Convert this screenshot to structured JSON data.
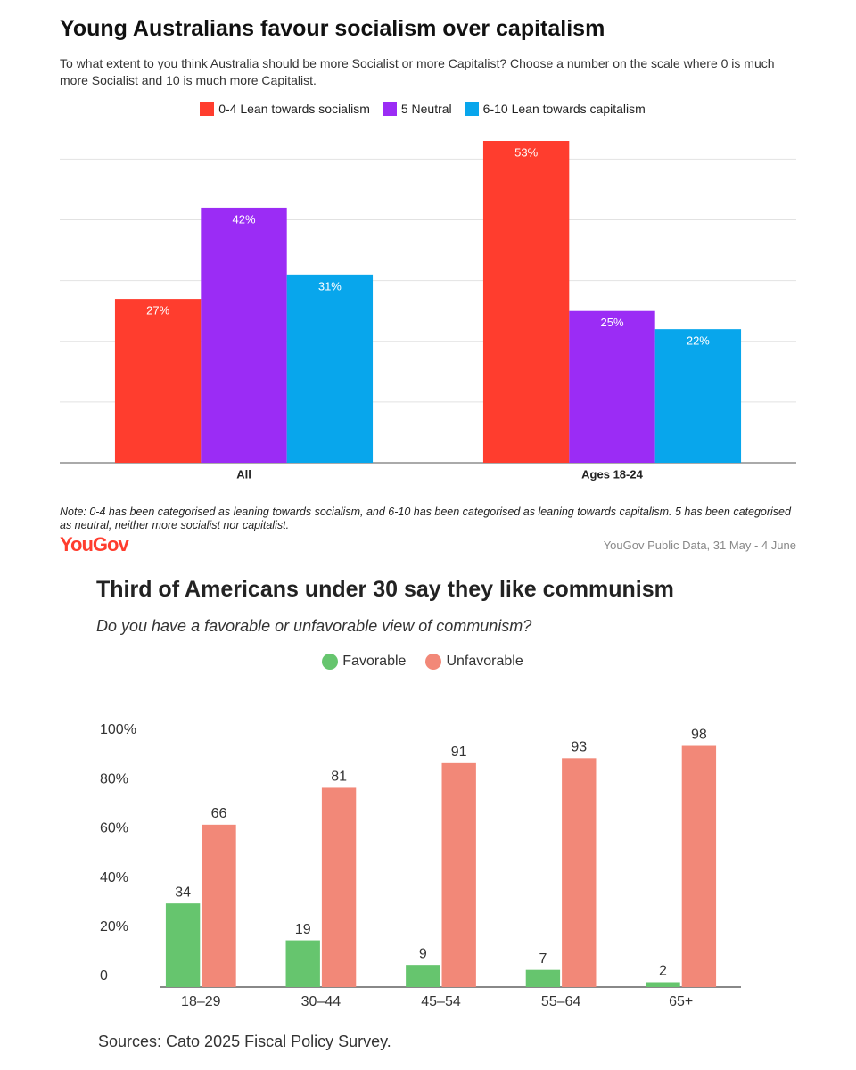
{
  "chart_data": [
    {
      "type": "bar",
      "title": "Young Australians favour socialism over capitalism",
      "subtitle": "To what extent to you think Australia should be more Socialist or more Capitalist? Choose a number on the scale where 0 is much more Socialist and 10 is much more Capitalist.",
      "categories": [
        "All",
        "Ages 18-24"
      ],
      "series": [
        {
          "name": "0-4 Lean towards socialism",
          "color": "#ff3d2e",
          "values": [
            27,
            53
          ],
          "value_labels": [
            "27%",
            "53%"
          ]
        },
        {
          "name": "5 Neutral",
          "color": "#9b2cf5",
          "values": [
            42,
            25
          ],
          "value_labels": [
            "42%",
            "25%"
          ]
        },
        {
          "name": "6-10 Lean towards capitalism",
          "color": "#08a6ec",
          "values": [
            31,
            22
          ],
          "value_labels": [
            "31%",
            "22%"
          ]
        }
      ],
      "ylim": [
        0,
        53
      ],
      "yticks": [
        0,
        10,
        20,
        30,
        40,
        50
      ],
      "show_tick_labels": false,
      "grid": true,
      "legend": "top",
      "note": "Note: 0-4 has been categorised as leaning towards socialism, and 6-10 has been categorised as leaning towards capitalism. 5 has been categorised as neutral, neither more socialist nor capitalist.",
      "logo": "YouGov",
      "source": "YouGov Public Data, 31 May - 4 June"
    },
    {
      "type": "bar",
      "title": "Third of Americans under 30 say they like communism",
      "subtitle": "Do you have a favorable or unfavorable view of communism?",
      "categories": [
        "18–29",
        "30–44",
        "45–54",
        "55–64",
        "65+"
      ],
      "series": [
        {
          "name": "Favorable",
          "color": "#66c56e",
          "values": [
            34,
            19,
            9,
            7,
            2
          ]
        },
        {
          "name": "Unfavorable",
          "color": "#f28878",
          "values": [
            66,
            81,
            91,
            93,
            98
          ]
        }
      ],
      "ylim": [
        0,
        100
      ],
      "yticks": [
        0,
        {
          "value": 20,
          "label": "20%"
        },
        {
          "value": 40,
          "label": "40%"
        },
        {
          "value": 60,
          "label": "60%"
        },
        {
          "value": 80,
          "label": "80%"
        },
        {
          "value": 100,
          "label": "100%"
        }
      ],
      "show_tick_labels": true,
      "grid": false,
      "legend": "top",
      "source": "Sources: Cato 2025 Fiscal Policy Survey."
    }
  ]
}
